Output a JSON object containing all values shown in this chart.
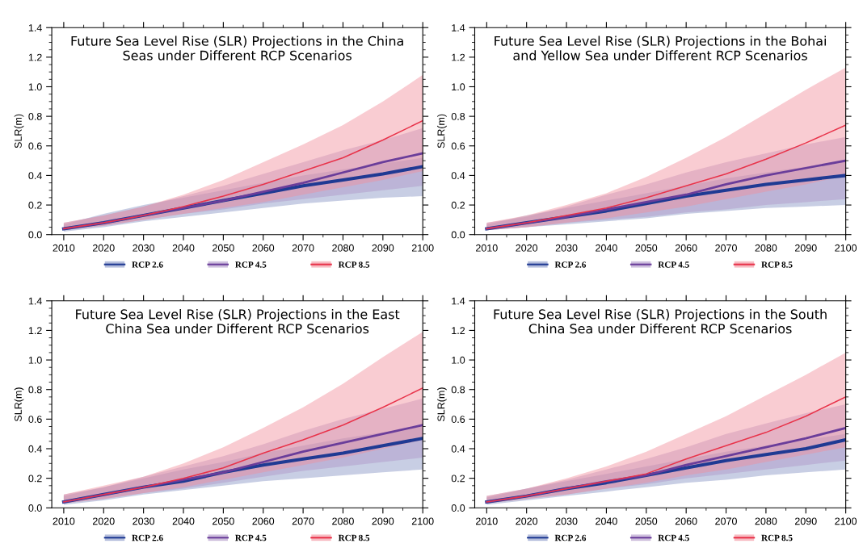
{
  "chart_data": [
    {
      "type": "line",
      "title": "Future Sea Level Rise (SLR) Projections in the China\nSeas under Different RCP Scenarios",
      "ylabel": "SLR(m)",
      "legend": "bottom",
      "grid": false,
      "x": [
        2010,
        2020,
        2030,
        2040,
        2050,
        2060,
        2070,
        2080,
        2090,
        2100
      ],
      "xlim": [
        2007,
        2100
      ],
      "xticks": [
        2010,
        2020,
        2030,
        2040,
        2050,
        2060,
        2070,
        2080,
        2090,
        2100
      ],
      "ylim": [
        0,
        1.4
      ],
      "yticks": [
        {
          "value": 0,
          "label": "0.0"
        },
        {
          "value": 0.2,
          "label": "0.2"
        },
        {
          "value": 0.4,
          "label": "0.4"
        },
        {
          "value": 0.6,
          "label": "0.6"
        },
        {
          "value": 0.8,
          "label": "0.8"
        },
        {
          "value": 1.0,
          "label": "1.0"
        },
        {
          "value": 1.2,
          "label": "1.2"
        },
        {
          "value": 1.4,
          "label": "1.4"
        }
      ],
      "series": [
        {
          "name": "RCP 2.6",
          "color": "#1f3a93",
          "values": [
            0.04,
            0.08,
            0.13,
            0.18,
            0.23,
            0.28,
            0.33,
            0.37,
            0.41,
            0.46
          ],
          "lower": [
            0.02,
            0.05,
            0.09,
            0.12,
            0.15,
            0.18,
            0.21,
            0.23,
            0.25,
            0.26
          ],
          "upper": [
            0.07,
            0.14,
            0.2,
            0.25,
            0.3,
            0.35,
            0.4,
            0.44,
            0.48,
            0.52
          ]
        },
        {
          "name": "RCP 4.5",
          "color": "#6a3d9a",
          "values": [
            0.04,
            0.08,
            0.13,
            0.18,
            0.23,
            0.29,
            0.35,
            0.42,
            0.49,
            0.55
          ],
          "lower": [
            0.03,
            0.06,
            0.1,
            0.14,
            0.17,
            0.21,
            0.24,
            0.27,
            0.3,
            0.33
          ],
          "upper": [
            0.08,
            0.13,
            0.19,
            0.26,
            0.33,
            0.41,
            0.49,
            0.57,
            0.64,
            0.72
          ]
        },
        {
          "name": "RCP 8.5",
          "color": "#e8334a",
          "values": [
            0.04,
            0.08,
            0.13,
            0.19,
            0.26,
            0.34,
            0.43,
            0.52,
            0.64,
            0.77
          ],
          "lower": [
            0.03,
            0.06,
            0.1,
            0.14,
            0.18,
            0.22,
            0.27,
            0.32,
            0.37,
            0.43
          ],
          "upper": [
            0.08,
            0.13,
            0.19,
            0.27,
            0.37,
            0.49,
            0.61,
            0.74,
            0.9,
            1.08
          ]
        }
      ]
    },
    {
      "type": "line",
      "title": "Future Sea Level Rise (SLR) Projections in the Bohai\nand Yellow Sea under Different RCP Scenarios",
      "ylabel": "SLR(m)",
      "legend": "bottom",
      "grid": false,
      "x": [
        2010,
        2020,
        2030,
        2040,
        2050,
        2060,
        2070,
        2080,
        2090,
        2100
      ],
      "xlim": [
        2007,
        2100
      ],
      "xticks": [
        2010,
        2020,
        2030,
        2040,
        2050,
        2060,
        2070,
        2080,
        2090,
        2100
      ],
      "ylim": [
        0,
        1.4
      ],
      "yticks": [
        {
          "value": 0,
          "label": "0.0"
        },
        {
          "value": 0.2,
          "label": "0.2"
        },
        {
          "value": 0.4,
          "label": "0.4"
        },
        {
          "value": 0.6,
          "label": "0.6"
        },
        {
          "value": 0.8,
          "label": "0.8"
        },
        {
          "value": 1.0,
          "label": "1.0"
        },
        {
          "value": 1.2,
          "label": "1.2"
        },
        {
          "value": 1.4,
          "label": "1.4"
        }
      ],
      "series": [
        {
          "name": "RCP 2.6",
          "color": "#1f3a93",
          "values": [
            0.04,
            0.08,
            0.12,
            0.16,
            0.21,
            0.26,
            0.3,
            0.34,
            0.37,
            0.4
          ],
          "lower": [
            0.03,
            0.05,
            0.07,
            0.09,
            0.11,
            0.14,
            0.16,
            0.18,
            0.19,
            0.2
          ],
          "upper": [
            0.07,
            0.13,
            0.18,
            0.23,
            0.28,
            0.33,
            0.38,
            0.42,
            0.46,
            0.5
          ]
        },
        {
          "name": "RCP 4.5",
          "color": "#6a3d9a",
          "values": [
            0.04,
            0.08,
            0.12,
            0.17,
            0.22,
            0.27,
            0.34,
            0.4,
            0.45,
            0.5
          ],
          "lower": [
            0.03,
            0.05,
            0.08,
            0.1,
            0.12,
            0.15,
            0.17,
            0.2,
            0.22,
            0.24
          ],
          "upper": [
            0.08,
            0.12,
            0.19,
            0.27,
            0.34,
            0.42,
            0.49,
            0.55,
            0.61,
            0.66
          ]
        },
        {
          "name": "RCP 8.5",
          "color": "#e8334a",
          "values": [
            0.04,
            0.08,
            0.13,
            0.18,
            0.25,
            0.33,
            0.41,
            0.51,
            0.62,
            0.74
          ],
          "lower": [
            0.03,
            0.05,
            0.08,
            0.11,
            0.15,
            0.19,
            0.24,
            0.29,
            0.34,
            0.4
          ],
          "upper": [
            0.08,
            0.13,
            0.2,
            0.28,
            0.39,
            0.52,
            0.66,
            0.82,
            0.98,
            1.13
          ]
        }
      ]
    },
    {
      "type": "line",
      "title": "Future Sea Level Rise (SLR) Projections in the East\nChina Sea under Different RCP Scenarios",
      "ylabel": "SLR(m)",
      "legend": "bottom",
      "grid": false,
      "x": [
        2010,
        2020,
        2030,
        2040,
        2050,
        2060,
        2070,
        2080,
        2090,
        2100
      ],
      "xlim": [
        2007,
        2100
      ],
      "xticks": [
        2010,
        2020,
        2030,
        2040,
        2050,
        2060,
        2070,
        2080,
        2090,
        2100
      ],
      "ylim": [
        0,
        1.4
      ],
      "yticks": [
        {
          "value": 0,
          "label": "0.0"
        },
        {
          "value": 0.2,
          "label": "0.2"
        },
        {
          "value": 0.4,
          "label": "0.4"
        },
        {
          "value": 0.6,
          "label": "0.6"
        },
        {
          "value": 0.8,
          "label": "0.8"
        },
        {
          "value": 1.0,
          "label": "1.0"
        },
        {
          "value": 1.2,
          "label": "1.2"
        },
        {
          "value": 1.4,
          "label": "1.4"
        }
      ],
      "series": [
        {
          "name": "RCP 2.6",
          "color": "#1f3a93",
          "values": [
            0.04,
            0.09,
            0.14,
            0.18,
            0.24,
            0.29,
            0.33,
            0.37,
            0.42,
            0.47
          ],
          "lower": [
            0.02,
            0.05,
            0.09,
            0.12,
            0.15,
            0.18,
            0.2,
            0.22,
            0.24,
            0.26
          ],
          "upper": [
            0.08,
            0.14,
            0.2,
            0.26,
            0.31,
            0.37,
            0.42,
            0.47,
            0.51,
            0.55
          ]
        },
        {
          "name": "RCP 4.5",
          "color": "#6a3d9a",
          "values": [
            0.04,
            0.09,
            0.14,
            0.19,
            0.24,
            0.31,
            0.38,
            0.44,
            0.5,
            0.56
          ],
          "lower": [
            0.03,
            0.06,
            0.1,
            0.13,
            0.17,
            0.21,
            0.25,
            0.28,
            0.31,
            0.34
          ],
          "upper": [
            0.09,
            0.14,
            0.21,
            0.28,
            0.35,
            0.43,
            0.52,
            0.6,
            0.67,
            0.74
          ]
        },
        {
          "name": "RCP 8.5",
          "color": "#e8334a",
          "values": [
            0.04,
            0.09,
            0.14,
            0.2,
            0.27,
            0.37,
            0.46,
            0.56,
            0.68,
            0.81
          ],
          "lower": [
            0.03,
            0.06,
            0.1,
            0.14,
            0.19,
            0.24,
            0.29,
            0.34,
            0.4,
            0.46
          ],
          "upper": [
            0.09,
            0.15,
            0.21,
            0.3,
            0.41,
            0.54,
            0.68,
            0.84,
            1.02,
            1.19
          ]
        }
      ]
    },
    {
      "type": "line",
      "title": "Future Sea Level Rise (SLR) Projections in the South\nChina Sea under Different RCP Scenarios",
      "ylabel": "SLR(m)",
      "legend": "bottom",
      "grid": false,
      "x": [
        2010,
        2020,
        2030,
        2040,
        2050,
        2060,
        2070,
        2080,
        2090,
        2100
      ],
      "xlim": [
        2007,
        2100
      ],
      "xticks": [
        2010,
        2020,
        2030,
        2040,
        2050,
        2060,
        2070,
        2080,
        2090,
        2100
      ],
      "ylim": [
        0,
        1.4
      ],
      "yticks": [
        {
          "value": 0,
          "label": "0.0"
        },
        {
          "value": 0.2,
          "label": "0.2"
        },
        {
          "value": 0.4,
          "label": "0.4"
        },
        {
          "value": 0.6,
          "label": "0.6"
        },
        {
          "value": 0.8,
          "label": "0.8"
        },
        {
          "value": 1.0,
          "label": "1.0"
        },
        {
          "value": 1.2,
          "label": "1.2"
        },
        {
          "value": 1.4,
          "label": "1.4"
        }
      ],
      "series": [
        {
          "name": "RCP 2.6",
          "color": "#1f3a93",
          "values": [
            0.04,
            0.08,
            0.13,
            0.17,
            0.22,
            0.27,
            0.32,
            0.36,
            0.4,
            0.46
          ],
          "lower": [
            0.02,
            0.05,
            0.08,
            0.11,
            0.14,
            0.17,
            0.19,
            0.22,
            0.24,
            0.26
          ],
          "upper": [
            0.07,
            0.13,
            0.18,
            0.23,
            0.28,
            0.33,
            0.38,
            0.42,
            0.46,
            0.5
          ]
        },
        {
          "name": "RCP 4.5",
          "color": "#6a3d9a",
          "values": [
            0.04,
            0.08,
            0.13,
            0.18,
            0.22,
            0.29,
            0.35,
            0.41,
            0.47,
            0.54
          ],
          "lower": [
            0.03,
            0.06,
            0.09,
            0.13,
            0.16,
            0.2,
            0.23,
            0.26,
            0.29,
            0.32
          ],
          "upper": [
            0.08,
            0.13,
            0.19,
            0.26,
            0.33,
            0.41,
            0.5,
            0.57,
            0.64,
            0.7
          ]
        },
        {
          "name": "RCP 8.5",
          "color": "#e8334a",
          "values": [
            0.04,
            0.08,
            0.13,
            0.18,
            0.23,
            0.33,
            0.42,
            0.51,
            0.62,
            0.75
          ],
          "lower": [
            0.03,
            0.06,
            0.09,
            0.13,
            0.17,
            0.22,
            0.26,
            0.31,
            0.36,
            0.41
          ],
          "upper": [
            0.08,
            0.13,
            0.2,
            0.28,
            0.38,
            0.5,
            0.62,
            0.76,
            0.9,
            1.05
          ]
        }
      ]
    }
  ]
}
